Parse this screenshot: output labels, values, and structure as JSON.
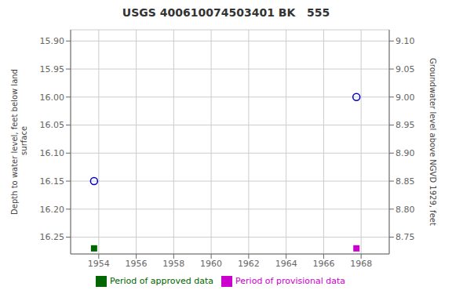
{
  "chart_data": {
    "type": "scatter",
    "title": "USGS 400610074503401 BK   555",
    "y_label": "Depth to water level, feet below land\n surface",
    "y2_label": "Groundwater level above NGVD 1929, feet",
    "xlim": [
      1952.5,
      1969.5
    ],
    "xticks": [
      1954,
      1956,
      1958,
      1960,
      1962,
      1964,
      1966,
      1968
    ],
    "ylim": [
      16.28,
      15.88
    ],
    "yticks": [
      {
        "value": 15.9,
        "label": "15.90"
      },
      15.95,
      {
        "value": 16.0,
        "label": "16.00"
      },
      16.05,
      {
        "value": 16.1,
        "label": "16.10"
      },
      16.15,
      {
        "value": 16.2,
        "label": "16.20"
      },
      16.25
    ],
    "y2lim": [
      8.72,
      9.12
    ],
    "y2ticks": [
      {
        "value": 9.1,
        "label": "9.10"
      },
      9.05,
      {
        "value": 9.0,
        "label": "9.00"
      },
      8.95,
      {
        "value": 8.9,
        "label": "8.90"
      },
      8.85,
      {
        "value": 8.8,
        "label": "8.80"
      },
      8.75
    ],
    "grid": true,
    "legend": "bottom",
    "series": [
      {
        "color": "#0000cc",
        "marker": "open_circle",
        "x": [
          1953.75,
          1967.75
        ],
        "values": [
          16.15,
          16.0
        ]
      },
      {
        "name": "Period of approved data",
        "color": "#006600",
        "marker": "square",
        "x": [
          1953.75
        ],
        "values": [
          16.27
        ]
      },
      {
        "name": "Period of provisional data",
        "color": "#cc00cc",
        "marker": "square",
        "x": [
          1967.75
        ],
        "values": [
          16.27
        ]
      }
    ]
  }
}
